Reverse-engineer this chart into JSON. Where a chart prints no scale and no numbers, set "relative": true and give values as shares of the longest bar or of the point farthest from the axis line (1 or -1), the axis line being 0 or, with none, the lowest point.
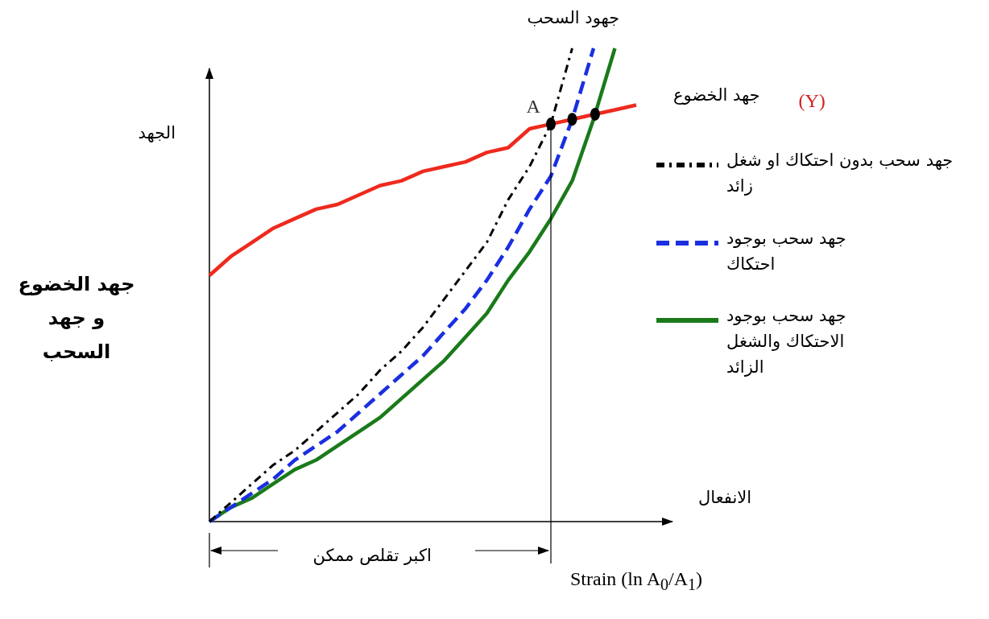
{
  "chart_data": {
    "type": "line",
    "relative": true,
    "xlabel": "الانفعال",
    "ylabel": "جهد الخضوع و جهد السحب",
    "categories": [
      null,
      null,
      null,
      null,
      null,
      null,
      null,
      null,
      null,
      null,
      null,
      null,
      null,
      null,
      null,
      null,
      null,
      null,
      null,
      null,
      null
    ],
    "series": [
      {
        "name": "جهد سحب بدون احتكاك او شغل زائد",
        "color": "#000000",
        "line_style": "dashdot",
        "values": [
          0,
          0.04,
          0.08,
          0.12,
          0.15,
          0.19,
          0.23,
          0.27,
          0.32,
          0.36,
          0.41,
          0.47,
          0.53,
          0.59,
          0.68,
          0.75,
          0.84,
          1.0,
          null,
          null,
          null
        ]
      },
      {
        "name": "جهد سحب بوجود احتكاك",
        "color": "#1a2fe0",
        "line_style": "dashed",
        "values": [
          0,
          0.03,
          0.06,
          0.09,
          0.13,
          0.16,
          0.19,
          0.23,
          0.27,
          0.31,
          0.35,
          0.4,
          0.45,
          0.51,
          0.58,
          0.66,
          0.73,
          0.85,
          1.0,
          null,
          null
        ]
      },
      {
        "name": "جهد سحب بوجود الاحتكاك والشغل الزائد",
        "color": "#1a7a1a",
        "line_style": "solid",
        "values": [
          0,
          0.03,
          0.05,
          0.08,
          0.11,
          0.13,
          0.16,
          0.19,
          0.22,
          0.26,
          0.3,
          0.34,
          0.39,
          0.44,
          0.51,
          0.57,
          0.64,
          0.72,
          0.85,
          1.0,
          null
        ]
      },
      {
        "name": "جهد الخضوع",
        "color": "#ee2a1e",
        "line_style": "solid",
        "values": [
          0.52,
          0.56,
          0.59,
          0.62,
          0.64,
          0.66,
          0.67,
          0.69,
          0.71,
          0.72,
          0.74,
          0.75,
          0.76,
          0.78,
          0.79,
          0.83,
          0.84,
          0.85,
          0.86,
          0.87,
          0.88
        ]
      }
    ],
    "annotations": [
      "جهود السحب",
      "(Y)",
      "A",
      "الجهد",
      "اكبر تقلص ممكن",
      "Strain (ln A$_{0}$/A$_{1}$)"
    ],
    "legend": "right"
  }
}
